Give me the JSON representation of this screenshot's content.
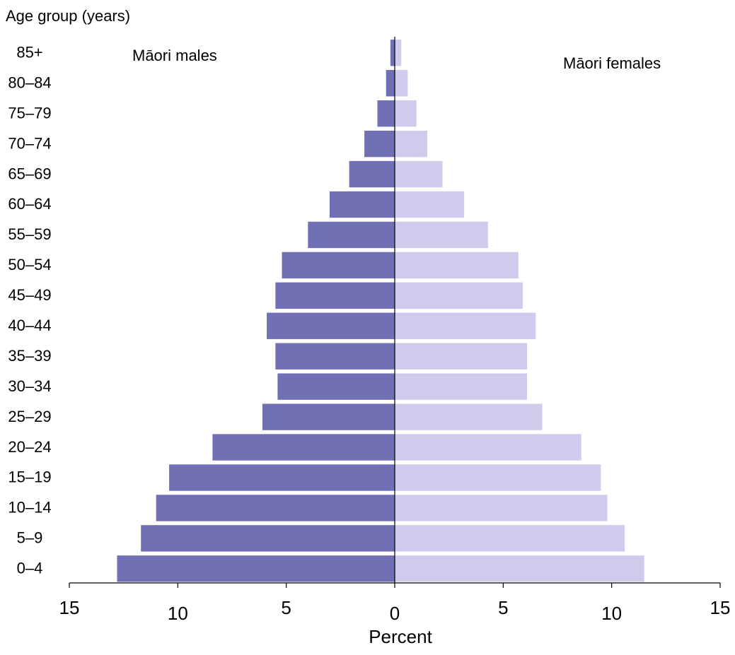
{
  "chart_data": {
    "type": "bar",
    "orientation": "horizontal-population-pyramid",
    "ylabel": "Age group (years)",
    "xlabel": "Percent",
    "categories": [
      "0–4",
      "5–9",
      "10–14",
      "15–19",
      "20–24",
      "25–29",
      "30–34",
      "35–39",
      "40–44",
      "45–49",
      "50–54",
      "55–59",
      "60–64",
      "65–69",
      "70–74",
      "75–79",
      "80–84",
      "85+"
    ],
    "series": [
      {
        "name": "Māori males",
        "side": "left",
        "color": "#7270b4",
        "values": [
          12.8,
          11.7,
          11.0,
          10.4,
          8.4,
          6.1,
          5.4,
          5.5,
          5.9,
          5.5,
          5.2,
          4.0,
          3.0,
          2.1,
          1.4,
          0.8,
          0.4,
          0.2
        ]
      },
      {
        "name": "Māori females",
        "side": "right",
        "color": "#cfcbed",
        "values": [
          11.5,
          10.6,
          9.8,
          9.5,
          8.6,
          6.8,
          6.1,
          6.1,
          6.5,
          5.9,
          5.7,
          4.3,
          3.2,
          2.2,
          1.5,
          1.0,
          0.6,
          0.3
        ]
      }
    ],
    "xlim": [
      -15,
      15
    ],
    "x_ticks": [
      -15,
      -10,
      -5,
      0,
      5,
      10,
      15
    ],
    "x_tick_labels": [
      "15",
      "10",
      "5",
      "0",
      "5",
      "10",
      "15"
    ],
    "grid": false,
    "legend": "none"
  }
}
